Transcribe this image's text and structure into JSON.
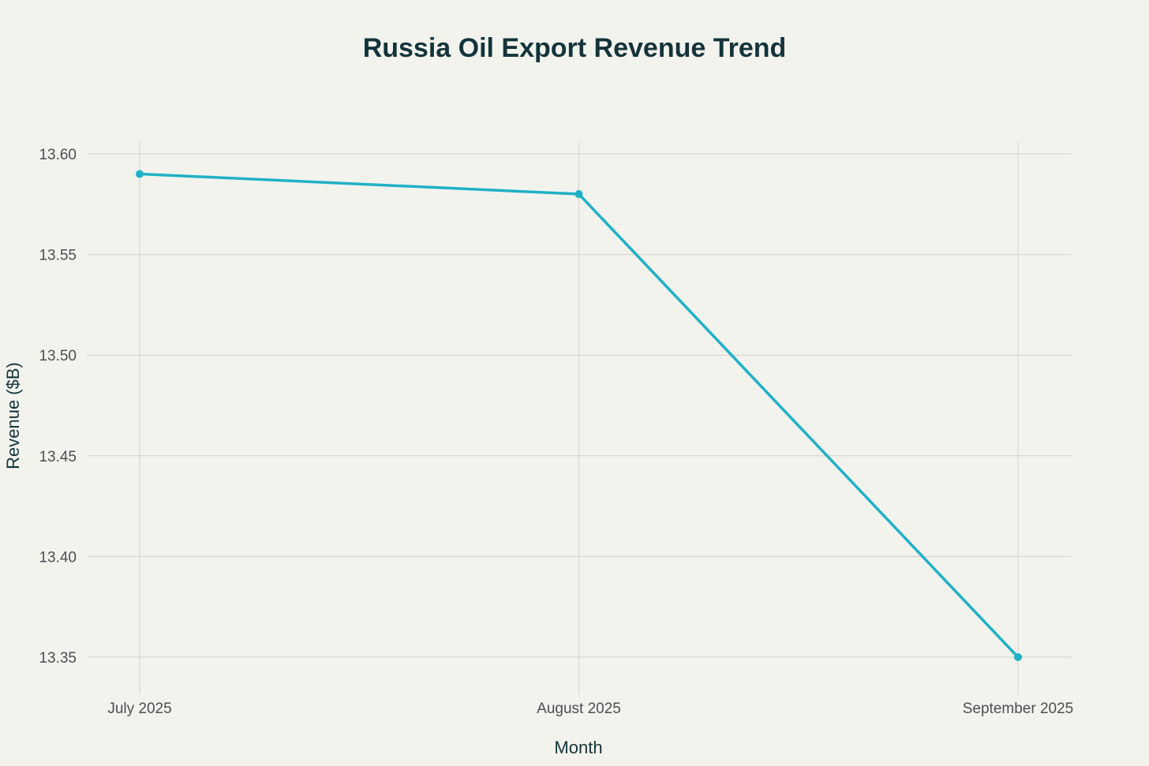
{
  "chart_data": {
    "type": "line",
    "title": "Russia Oil Export Revenue Trend",
    "xlabel": "Month",
    "ylabel": "Revenue ($B)",
    "categories": [
      "July 2025",
      "August 2025",
      "September 2025"
    ],
    "series": [
      {
        "values": [
          13.59,
          13.58,
          13.35
        ],
        "color": "#1fb1c6"
      }
    ],
    "yticks": [
      "13.35",
      "13.40",
      "13.45",
      "13.50",
      "13.55",
      "13.60"
    ],
    "ylim": [
      13.335,
      13.605
    ],
    "grid": true,
    "legend": "none"
  }
}
